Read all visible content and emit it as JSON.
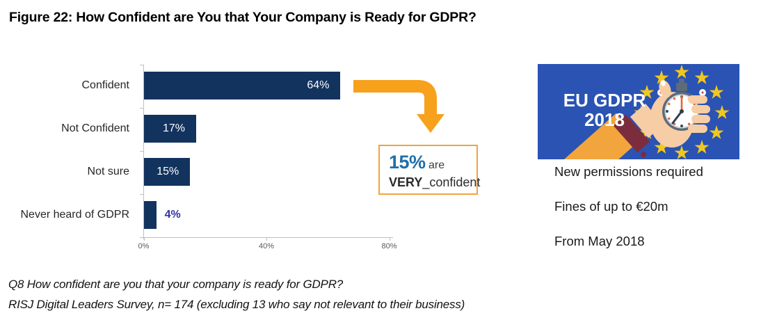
{
  "title": "Figure 22: How Confident are You that Your Company is Ready for GDPR?",
  "chart_data": {
    "type": "bar",
    "orientation": "horizontal",
    "categories": [
      "Confident",
      "Not Confident",
      "Not sure",
      "Never heard of GDPR"
    ],
    "values": [
      64,
      17,
      15,
      4
    ],
    "value_labels": [
      "64%",
      "17%",
      "15%",
      "4%"
    ],
    "xticks": [
      "0%",
      "40%",
      "80%"
    ],
    "xlim": [
      0,
      80
    ],
    "grid": false,
    "bar_color": "#12335e",
    "inside_label_color": "#ffffff",
    "outside_label_color": "#3333a3"
  },
  "callout": {
    "pct": "15%",
    "are": " are",
    "very": "VERY",
    "separator": "_",
    "confident": "confident",
    "border_color": "#f2a33c",
    "pct_color": "#1f6fa8"
  },
  "arrow": {
    "color": "#f7a11c"
  },
  "badge": {
    "line1": "EU GDPR",
    "line2": "2018",
    "bg_color": "#2a53b4",
    "star_color": "#f2c71d"
  },
  "facts": [
    "New permissions required",
    "Fines of up to €20m",
    "From May 2018"
  ],
  "footnotes": [
    "Q8 How confident are you that your company is ready for GDPR?",
    "RISJ Digital Leaders Survey, n= 174 (excluding 13 who say not relevant to their business)"
  ]
}
